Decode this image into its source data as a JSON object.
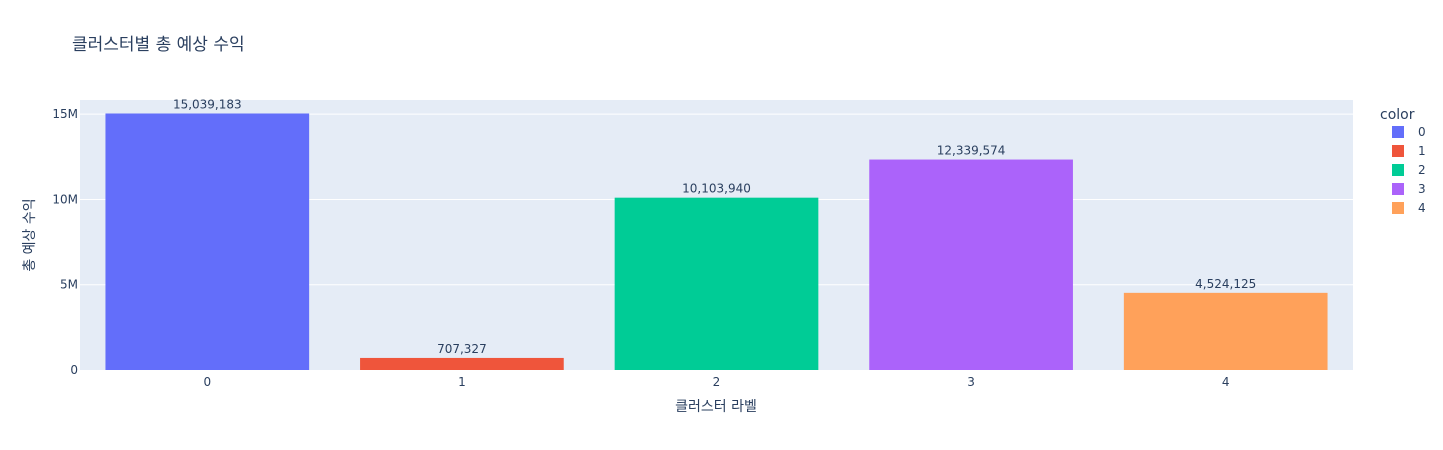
{
  "chart_data": {
    "type": "bar",
    "title": "클러스터별 총 예상 수익",
    "xlabel": "클러스터 라벨",
    "ylabel": "총 예상 수익",
    "categories": [
      "0",
      "1",
      "2",
      "3",
      "4"
    ],
    "values": [
      15039183,
      707327,
      10103940,
      12339574,
      4524125
    ],
    "value_labels": [
      "15,039,183",
      "707,327",
      "10,103,940",
      "12,339,574",
      "4,524,125"
    ],
    "colors": [
      "#636efa",
      "#EF553B",
      "#00cc96",
      "#ab63fa",
      "#FFA15A"
    ],
    "ylim": [
      0,
      15830719
    ],
    "yticks": [
      {
        "value": 0,
        "label": "0"
      },
      {
        "value": 5000000,
        "label": "5M"
      },
      {
        "value": 10000000,
        "label": "10M"
      },
      {
        "value": 15000000,
        "label": "15M"
      }
    ],
    "grid": true,
    "plot_background": "#e5ecf6",
    "legend": {
      "title": "color",
      "placement": "right",
      "entries": [
        "0",
        "1",
        "2",
        "3",
        "4"
      ]
    }
  }
}
